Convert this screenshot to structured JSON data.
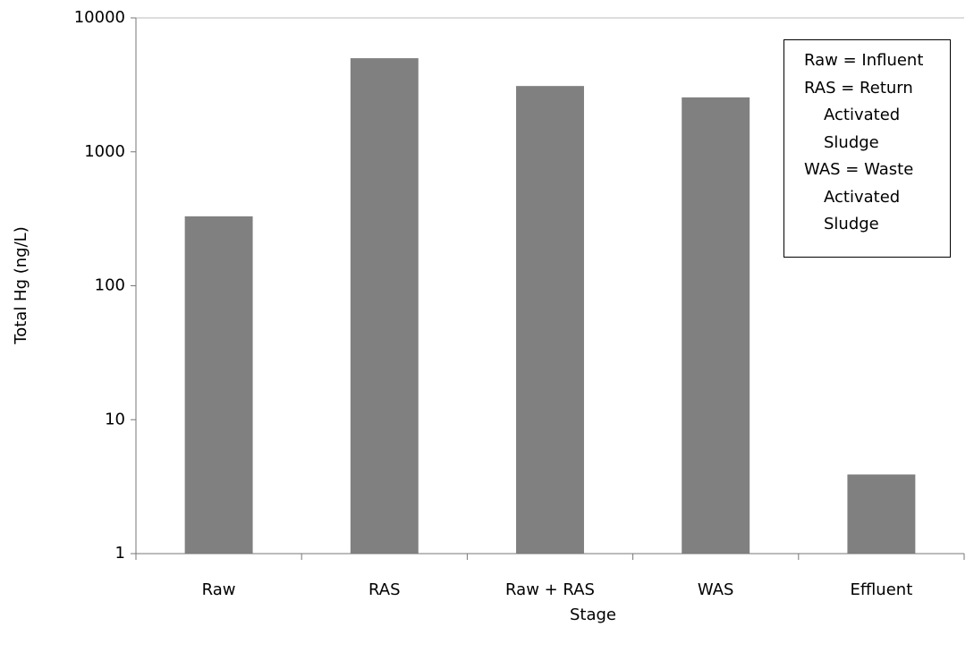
{
  "chart_data": {
    "type": "bar",
    "x_label": "Stage",
    "y_label": "Total Hg (ng/L)",
    "categories": [
      "Raw",
      "RAS",
      "Raw + RAS",
      "WAS",
      "Effluent"
    ],
    "values": [
      330,
      5000,
      3100,
      2550,
      3.9
    ],
    "color": "#808080",
    "log_scale": true,
    "ylim": [
      1,
      10000
    ],
    "yticks": [
      1,
      10,
      100,
      1000,
      10000
    ],
    "grid": false,
    "annotation": [
      "Raw = Influent",
      "RAS = Return Activated Sludge",
      "WAS = Waste Activated Sludge"
    ]
  }
}
